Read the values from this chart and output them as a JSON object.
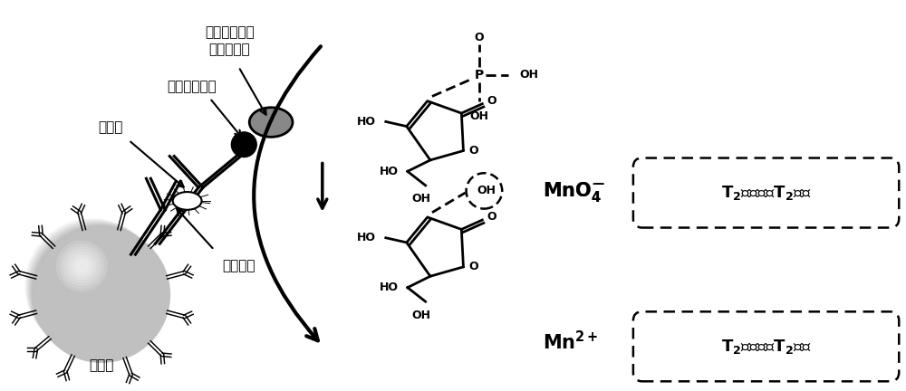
{
  "bg_color": "#ffffff",
  "fig_width": 10.0,
  "fig_height": 4.32,
  "dpi": 100,
  "labels": {
    "avidin_enzyme": "亲和素标记的\n碱性磷酸酶",
    "biotin_ab": "生物素化抗体",
    "pathogen": "致病菌",
    "capture_ab": "捕获抗体",
    "mag_particle": "磁颗粒",
    "box1": "T₂信号弱，T₂值大",
    "box2": "T₂信号强，T₂值小"
  }
}
